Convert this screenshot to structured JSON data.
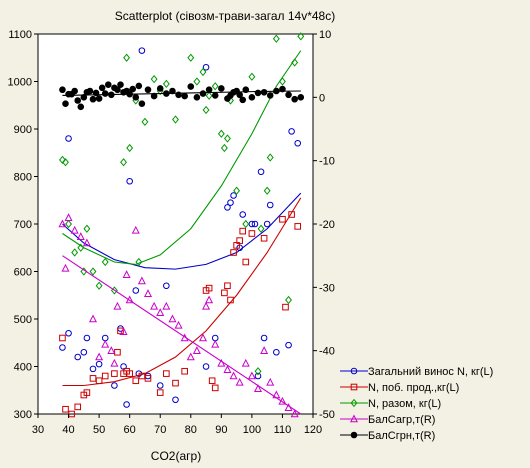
{
  "chart_data": {
    "type": "scatter",
    "title": "Scatterplot (сівозм-трави-загал 14v*48c)",
    "xlabel": "CO2(агр)",
    "ylabel_left": "",
    "ylabel_right": "",
    "xlim": [
      30,
      120
    ],
    "ylim_left": [
      300,
      1100
    ],
    "ylim_right": [
      -50,
      10
    ],
    "xticks": [
      30,
      40,
      50,
      60,
      70,
      80,
      90,
      100,
      110,
      120
    ],
    "yticks_left": [
      300,
      400,
      500,
      600,
      700,
      800,
      900,
      1000,
      1100
    ],
    "yticks_right": [
      -50,
      -40,
      -30,
      -20,
      -10,
      0,
      10
    ],
    "grid": false,
    "legend_position": "bottom-right",
    "series": [
      {
        "name": "Загальний винос N, кг(L)",
        "axis": "left",
        "color": "#0000cc",
        "marker": "circle",
        "points": [
          [
            38,
            440
          ],
          [
            40,
            470
          ],
          [
            40,
            880
          ],
          [
            43,
            420
          ],
          [
            45,
            430
          ],
          [
            46,
            460
          ],
          [
            48,
            395
          ],
          [
            50,
            405
          ],
          [
            52,
            460
          ],
          [
            55,
            360
          ],
          [
            57,
            480
          ],
          [
            58,
            400
          ],
          [
            59,
            320
          ],
          [
            60,
            790
          ],
          [
            62,
            560
          ],
          [
            63,
            385
          ],
          [
            64,
            1065
          ],
          [
            66,
            380
          ],
          [
            70,
            360
          ],
          [
            72,
            570
          ],
          [
            75,
            330
          ],
          [
            85,
            400
          ],
          [
            85,
            1030
          ],
          [
            88,
            460
          ],
          [
            92,
            735
          ],
          [
            93,
            745
          ],
          [
            94,
            760
          ],
          [
            96,
            650
          ],
          [
            97,
            720
          ],
          [
            100,
            700
          ],
          [
            101,
            700
          ],
          [
            102,
            380
          ],
          [
            103,
            810
          ],
          [
            104,
            460
          ],
          [
            105,
            700
          ],
          [
            106,
            740
          ],
          [
            108,
            430
          ],
          [
            112,
            445
          ],
          [
            113,
            895
          ],
          [
            115,
            870
          ]
        ],
        "fit": [
          [
            38,
            700
          ],
          [
            45,
            660
          ],
          [
            55,
            625
          ],
          [
            65,
            608
          ],
          [
            75,
            605
          ],
          [
            85,
            615
          ],
          [
            95,
            640
          ],
          [
            105,
            690
          ],
          [
            116,
            765
          ]
        ]
      },
      {
        "name": "N, поб. прод.,кг(L)",
        "axis": "left",
        "color": "#cc0000",
        "marker": "square",
        "points": [
          [
            38,
            460
          ],
          [
            39,
            310
          ],
          [
            41,
            300
          ],
          [
            43,
            315
          ],
          [
            45,
            340
          ],
          [
            46,
            345
          ],
          [
            48,
            375
          ],
          [
            50,
            370
          ],
          [
            52,
            380
          ],
          [
            55,
            385
          ],
          [
            56,
            430
          ],
          [
            57,
            475
          ],
          [
            58,
            385
          ],
          [
            59,
            390
          ],
          [
            60,
            385
          ],
          [
            62,
            370
          ],
          [
            64,
            380
          ],
          [
            66,
            375
          ],
          [
            70,
            345
          ],
          [
            72,
            385
          ],
          [
            75,
            365
          ],
          [
            78,
            390
          ],
          [
            85,
            560
          ],
          [
            86,
            565
          ],
          [
            87,
            370
          ],
          [
            88,
            355
          ],
          [
            91,
            555
          ],
          [
            92,
            570
          ],
          [
            93,
            540
          ],
          [
            94,
            640
          ],
          [
            95,
            655
          ],
          [
            96,
            665
          ],
          [
            97,
            685
          ],
          [
            98,
            620
          ],
          [
            100,
            680
          ],
          [
            104,
            670
          ],
          [
            110,
            710
          ],
          [
            111,
            525
          ],
          [
            113,
            720
          ],
          [
            115,
            695
          ]
        ],
        "fit": [
          [
            38,
            360
          ],
          [
            45,
            360
          ],
          [
            55,
            368
          ],
          [
            65,
            385
          ],
          [
            75,
            420
          ],
          [
            85,
            475
          ],
          [
            95,
            550
          ],
          [
            105,
            640
          ],
          [
            116,
            755
          ]
        ]
      },
      {
        "name": "N, разом, кг(L)",
        "axis": "left",
        "color": "#009900",
        "marker": "diamond",
        "points": [
          [
            38,
            835
          ],
          [
            39,
            830
          ],
          [
            40,
            700
          ],
          [
            42,
            640
          ],
          [
            44,
            650
          ],
          [
            45,
            600
          ],
          [
            46,
            690
          ],
          [
            48,
            600
          ],
          [
            50,
            570
          ],
          [
            52,
            620
          ],
          [
            55,
            560
          ],
          [
            58,
            830
          ],
          [
            59,
            1050
          ],
          [
            60,
            860
          ],
          [
            62,
            960
          ],
          [
            63,
            620
          ],
          [
            65,
            915
          ],
          [
            68,
            1005
          ],
          [
            70,
            980
          ],
          [
            72,
            995
          ],
          [
            75,
            920
          ],
          [
            80,
            1050
          ],
          [
            82,
            1000
          ],
          [
            84,
            1020
          ],
          [
            85,
            940
          ],
          [
            86,
            970
          ],
          [
            88,
            990
          ],
          [
            90,
            890
          ],
          [
            91,
            860
          ],
          [
            92,
            880
          ],
          [
            93,
            960
          ],
          [
            95,
            770
          ],
          [
            98,
            700
          ],
          [
            100,
            1010
          ],
          [
            102,
            390
          ],
          [
            103,
            690
          ],
          [
            105,
            770
          ],
          [
            106,
            840
          ],
          [
            108,
            1090
          ],
          [
            110,
            1000
          ],
          [
            112,
            540
          ],
          [
            114,
            1040
          ],
          [
            116,
            1095
          ]
        ],
        "fit": [
          [
            38,
            680
          ],
          [
            45,
            650
          ],
          [
            55,
            620
          ],
          [
            62,
            615
          ],
          [
            70,
            635
          ],
          [
            80,
            690
          ],
          [
            90,
            780
          ],
          [
            100,
            890
          ],
          [
            108,
            990
          ],
          [
            116,
            1065
          ]
        ]
      },
      {
        "name": "БалСагр,т(R)",
        "axis": "right",
        "color": "#cc00cc",
        "marker": "triangle",
        "points": [
          [
            38,
            -20
          ],
          [
            39,
            -27
          ],
          [
            40,
            -19
          ],
          [
            42,
            -21
          ],
          [
            44,
            -22
          ],
          [
            46,
            -23
          ],
          [
            48,
            -35
          ],
          [
            50,
            -41
          ],
          [
            52,
            -39
          ],
          [
            54,
            -40
          ],
          [
            55,
            -42
          ],
          [
            56,
            -33
          ],
          [
            58,
            -37
          ],
          [
            59,
            -28
          ],
          [
            60,
            -32
          ],
          [
            62,
            -21
          ],
          [
            64,
            -29
          ],
          [
            66,
            -31
          ],
          [
            68,
            -33
          ],
          [
            70,
            -34
          ],
          [
            72,
            -33
          ],
          [
            74,
            -35
          ],
          [
            76,
            -36
          ],
          [
            78,
            -38
          ],
          [
            80,
            -41
          ],
          [
            82,
            -40
          ],
          [
            84,
            -38
          ],
          [
            85,
            -33
          ],
          [
            86,
            -32
          ],
          [
            88,
            -39
          ],
          [
            90,
            -42
          ],
          [
            92,
            -43
          ],
          [
            94,
            -44
          ],
          [
            96,
            -45
          ],
          [
            98,
            -42
          ],
          [
            100,
            -44
          ],
          [
            102,
            -46
          ],
          [
            104,
            -40
          ],
          [
            106,
            -45
          ],
          [
            108,
            -47
          ],
          [
            110,
            -48
          ],
          [
            112,
            -49
          ],
          [
            114,
            -50
          ]
        ],
        "fit": [
          [
            38,
            -25
          ],
          [
            116,
            -50
          ]
        ]
      },
      {
        "name": "БалСгрн,т(R)",
        "axis": "right",
        "color": "#000000",
        "marker": "filled-circle",
        "points": [
          [
            38,
            1.2
          ],
          [
            39,
            -1
          ],
          [
            40,
            0.5
          ],
          [
            41,
            0.5
          ],
          [
            42,
            1
          ],
          [
            43,
            -0.5
          ],
          [
            44,
            -1.5
          ],
          [
            45,
            0
          ],
          [
            46,
            0.8
          ],
          [
            47,
            1
          ],
          [
            48,
            -0.3
          ],
          [
            49,
            0.7
          ],
          [
            50,
            -0.2
          ],
          [
            51,
            1.5
          ],
          [
            52,
            0.6
          ],
          [
            53,
            2
          ],
          [
            54,
            0.4
          ],
          [
            55,
            1.5
          ],
          [
            56,
            1.2
          ],
          [
            57,
            2
          ],
          [
            58,
            0.8
          ],
          [
            59,
            1
          ],
          [
            60,
            0.5
          ],
          [
            61,
            1.3
          ],
          [
            62,
            0
          ],
          [
            63,
            1.8
          ],
          [
            64,
            -1
          ],
          [
            66,
            1.2
          ],
          [
            68,
            0.2
          ],
          [
            70,
            1.4
          ],
          [
            72,
            0.6
          ],
          [
            74,
            1
          ],
          [
            76,
            0.4
          ],
          [
            78,
            0.2
          ],
          [
            80,
            1.7
          ],
          [
            82,
            0
          ],
          [
            84,
            0.6
          ],
          [
            86,
            1.2
          ],
          [
            88,
            0.3
          ],
          [
            90,
            1.4
          ],
          [
            92,
            -0.2
          ],
          [
            93,
            0.3
          ],
          [
            94,
            0.8
          ],
          [
            95,
            1
          ],
          [
            96,
            0.4
          ],
          [
            97,
            -0.4
          ],
          [
            98,
            1.2
          ],
          [
            100,
            0
          ],
          [
            102,
            0.7
          ],
          [
            104,
            0.8
          ],
          [
            106,
            0.3
          ],
          [
            108,
            1
          ],
          [
            110,
            1.3
          ],
          [
            112,
            0.4
          ],
          [
            114,
            -0.3
          ],
          [
            116,
            0
          ]
        ],
        "fit": [
          [
            38,
            0.3
          ],
          [
            60,
            0.5
          ],
          [
            80,
            0.7
          ],
          [
            100,
            0.9
          ],
          [
            116,
            1
          ]
        ]
      }
    ]
  }
}
